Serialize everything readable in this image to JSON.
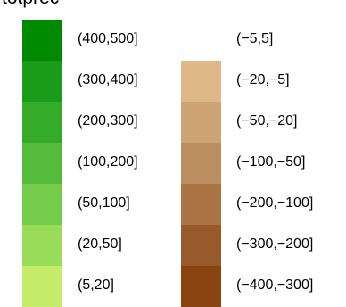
{
  "legend": {
    "title": "totprec",
    "positive": [
      {
        "label": "(400,500]",
        "color": "#008a00"
      },
      {
        "label": "(300,400]",
        "color": "#1a9b1a"
      },
      {
        "label": "(200,300]",
        "color": "#35ab2a"
      },
      {
        "label": "(100,200]",
        "color": "#55bb3b"
      },
      {
        "label": "(50,100]",
        "color": "#75cc4a"
      },
      {
        "label": "(20,50]",
        "color": "#98dc5a"
      },
      {
        "label": "(5,20]",
        "color": "#c4ec6a"
      }
    ],
    "negative": [
      {
        "label": "(−5,5]",
        "color": "#ffffff"
      },
      {
        "label": "(−20,−5]",
        "color": "#dfb888"
      },
      {
        "label": "(−50,−20]",
        "color": "#cea474"
      },
      {
        "label": "(−100,−50]",
        "color": "#bc8d5e"
      },
      {
        "label": "(−200,−100]",
        "color": "#aa7444"
      },
      {
        "label": "(−300,−200]",
        "color": "#985a2a"
      },
      {
        "label": "(−400,−300]",
        "color": "#8a4412"
      }
    ]
  }
}
